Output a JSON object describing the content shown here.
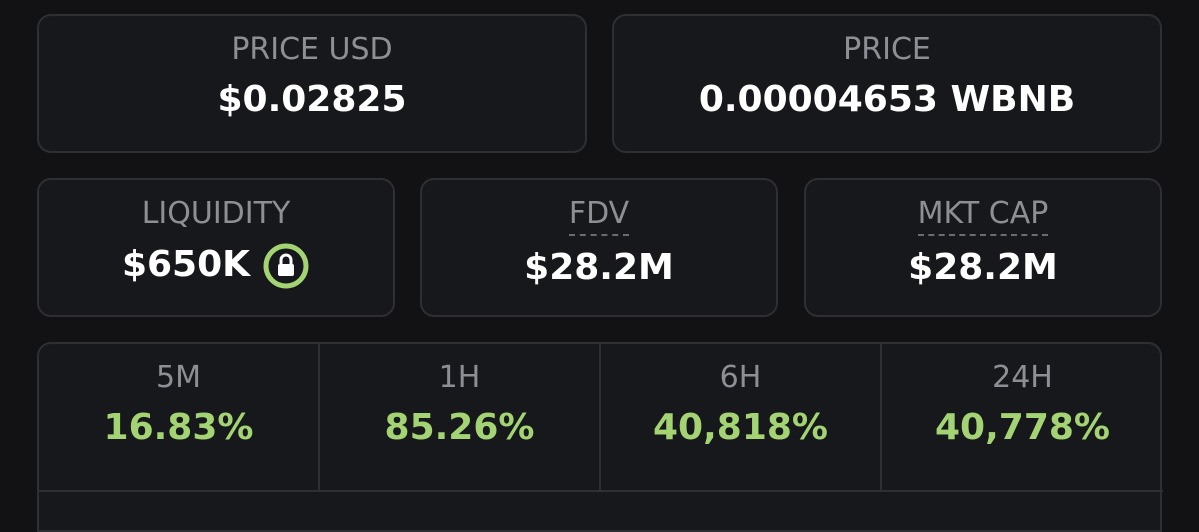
{
  "price_usd": {
    "label": "PRICE USD",
    "value": "$0.02825"
  },
  "price": {
    "label": "PRICE",
    "value": "0.00004653 WBNB"
  },
  "liquidity": {
    "label": "LIQUIDITY",
    "value": "$650K"
  },
  "fdv": {
    "label": "FDV",
    "value": "$28.2M"
  },
  "mkt_cap": {
    "label": "MKT CAP",
    "value": "$28.2M"
  },
  "changes": [
    {
      "label": "5M",
      "value": "16.83%"
    },
    {
      "label": "1H",
      "value": "85.26%"
    },
    {
      "label": "6H",
      "value": "40,818%"
    },
    {
      "label": "24H",
      "value": "40,778%"
    }
  ]
}
